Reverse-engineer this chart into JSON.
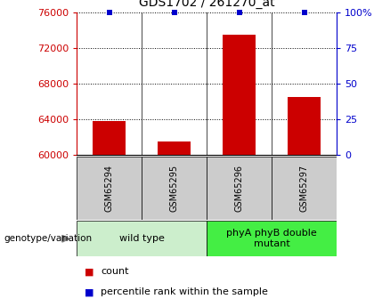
{
  "title": "GDS1702 / 261270_at",
  "samples": [
    "GSM65294",
    "GSM65295",
    "GSM65296",
    "GSM65297"
  ],
  "counts": [
    63800,
    61500,
    73500,
    66500
  ],
  "percentiles": [
    100,
    100,
    100,
    100
  ],
  "ymin": 60000,
  "ymax": 76000,
  "yticks": [
    60000,
    64000,
    68000,
    72000,
    76000
  ],
  "y2ticks": [
    0,
    25,
    50,
    75,
    100
  ],
  "bar_color": "#cc0000",
  "percentile_color": "#0000cc",
  "groups": [
    {
      "label": "wild type",
      "indices": [
        0,
        1
      ],
      "color": "#cceecc"
    },
    {
      "label": "phyA phyB double\nmutant",
      "indices": [
        2,
        3
      ],
      "color": "#44ee44"
    }
  ],
  "sample_box_color": "#cccccc",
  "xlabel_genotype": "genotype/variation",
  "legend_count_color": "#cc0000",
  "legend_pct_color": "#0000cc",
  "title_fontsize": 10,
  "tick_fontsize": 8,
  "sample_fontsize": 7,
  "group_fontsize": 8,
  "legend_fontsize": 8
}
